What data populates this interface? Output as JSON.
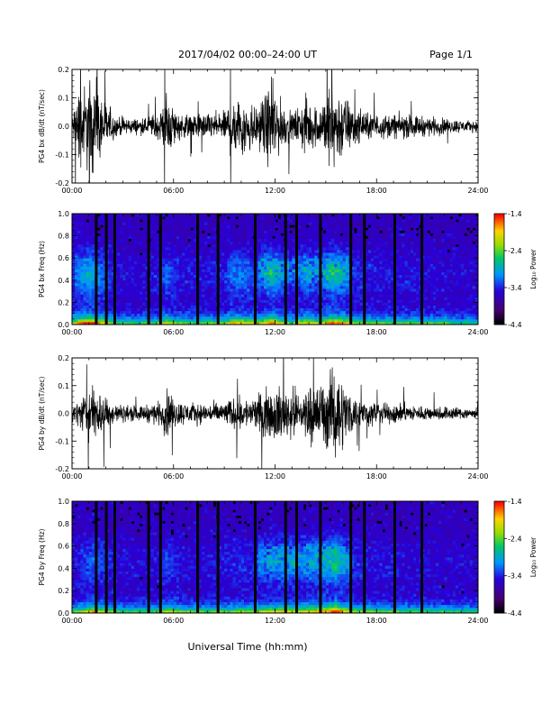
{
  "header": {
    "title": "2017/04/02  00:00–24:00 UT",
    "page": "Page 1/1"
  },
  "xlabel": "Universal Time (hh:mm)",
  "colorbar_label": "Log₁₀ Power",
  "chart_data": [
    {
      "type": "line",
      "ylabel": "PG4 bx dB/dt (nT/sec)",
      "xlim": [
        0,
        24
      ],
      "ylim": [
        -0.2,
        0.2
      ],
      "xticks": [
        "00:00",
        "06:00",
        "12:00",
        "18:00",
        "24:00"
      ],
      "yticks": [
        "-0.2",
        "-0.1",
        "0.0",
        "0.1",
        "0.2"
      ],
      "activity": [
        [
          0,
          0.03
        ],
        [
          0.2,
          0.13
        ],
        [
          1,
          0.2
        ],
        [
          1.8,
          0.13
        ],
        [
          2.6,
          0.04
        ],
        [
          4,
          0.03
        ],
        [
          5.2,
          0.06
        ],
        [
          5.6,
          0.12
        ],
        [
          6.4,
          0.05
        ],
        [
          7.8,
          0.05
        ],
        [
          9,
          0.06
        ],
        [
          9.5,
          0.14
        ],
        [
          10.4,
          0.12
        ],
        [
          11,
          0.08
        ],
        [
          11.8,
          0.18
        ],
        [
          12.4,
          0.1
        ],
        [
          13,
          0.05
        ],
        [
          13.8,
          0.12
        ],
        [
          14.6,
          0.08
        ],
        [
          15.3,
          0.18
        ],
        [
          16,
          0.14
        ],
        [
          16.8,
          0.07
        ],
        [
          18,
          0.05
        ],
        [
          19.5,
          0.05
        ],
        [
          21,
          0.04
        ],
        [
          22.5,
          0.03
        ],
        [
          24,
          0.02
        ]
      ]
    },
    {
      "type": "heatmap",
      "ylabel": "PG4 bx Freq (Hz)",
      "xlim": [
        0,
        24
      ],
      "ylim": [
        0,
        1.0
      ],
      "xticks": [
        "00:00",
        "06:00",
        "12:00",
        "18:00",
        "24:00"
      ],
      "yticks": [
        "0.0",
        "0.2",
        "0.4",
        "0.6",
        "0.8",
        "1.0"
      ],
      "colorbar": {
        "min": -4.4,
        "max": -1.4,
        "ticks": [
          "-1.4",
          "-2.4",
          "-3.4",
          "-4.4"
        ]
      }
    },
    {
      "type": "line",
      "ylabel": "PG4 by dB/dt (nT/sec)",
      "xlim": [
        0,
        24
      ],
      "ylim": [
        -0.2,
        0.2
      ],
      "xticks": [
        "00:00",
        "06:00",
        "12:00",
        "18:00",
        "24:00"
      ],
      "yticks": [
        "-0.2",
        "-0.1",
        "0.0",
        "0.1",
        "0.2"
      ],
      "activity": [
        [
          0,
          0.03
        ],
        [
          0.4,
          0.06
        ],
        [
          1.2,
          0.12
        ],
        [
          2,
          0.08
        ],
        [
          2.6,
          0.04
        ],
        [
          4,
          0.03
        ],
        [
          5.2,
          0.05
        ],
        [
          5.6,
          0.1
        ],
        [
          6.4,
          0.05
        ],
        [
          8,
          0.04
        ],
        [
          9,
          0.05
        ],
        [
          9.8,
          0.07
        ],
        [
          10.5,
          0.06
        ],
        [
          11.5,
          0.1
        ],
        [
          12.4,
          0.12
        ],
        [
          13.4,
          0.1
        ],
        [
          14.2,
          0.12
        ],
        [
          15,
          0.14
        ],
        [
          15.6,
          0.2
        ],
        [
          16.2,
          0.12
        ],
        [
          16.8,
          0.06
        ],
        [
          18,
          0.05
        ],
        [
          19.5,
          0.04
        ],
        [
          21,
          0.03
        ],
        [
          22.5,
          0.03
        ],
        [
          24,
          0.02
        ]
      ]
    },
    {
      "type": "heatmap",
      "ylabel": "PG4 by Freq (Hz)",
      "xlim": [
        0,
        24
      ],
      "ylim": [
        0,
        1.0
      ],
      "xticks": [
        "00:00",
        "06:00",
        "12:00",
        "18:00",
        "24:00"
      ],
      "yticks": [
        "0.0",
        "0.2",
        "0.4",
        "0.6",
        "0.8",
        "1.0"
      ],
      "colorbar": {
        "min": -4.4,
        "max": -1.4,
        "ticks": [
          "-1.4",
          "-2.4",
          "-3.4",
          "-4.4"
        ]
      }
    }
  ]
}
